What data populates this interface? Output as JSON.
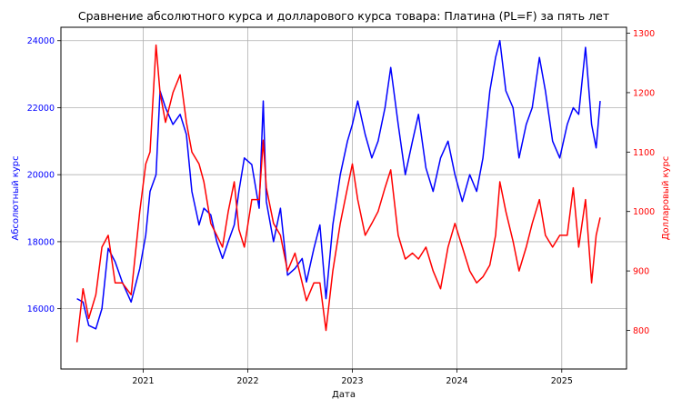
{
  "chart_data": {
    "type": "line",
    "title": "Сравнение абсолютного курса и долларового курса товара: Платина (PL=F) за пять лет",
    "xlabel": "Дата",
    "x_range": [
      "2020-03-20",
      "2025-08-15"
    ],
    "x_ticks": [
      "2021",
      "2022",
      "2023",
      "2024",
      "2025"
    ],
    "grid": true,
    "axes": {
      "left": {
        "label": "Абсолютный курс",
        "color": "#0000ff",
        "ylim": [
          14200,
          24400
        ],
        "ticks": [
          "16000",
          "18000",
          "20000",
          "22000",
          "24000"
        ]
      },
      "right": {
        "label": "Долларовый курс",
        "color": "#ff0000",
        "ylim": [
          735,
          1310
        ],
        "ticks": [
          "800",
          "900",
          "1000",
          "1100",
          "1200",
          "1300"
        ]
      }
    },
    "series": [
      {
        "axis": "left",
        "color": "#0000ff",
        "x": [
          "2020-05-15",
          "2020-06-05",
          "2020-06-25",
          "2020-07-20",
          "2020-08-10",
          "2020-09-01",
          "2020-09-25",
          "2020-10-20",
          "2020-11-20",
          "2020-12-20",
          "2021-01-10",
          "2021-01-25",
          "2021-02-15",
          "2021-03-01",
          "2021-03-20",
          "2021-04-15",
          "2021-05-10",
          "2021-06-01",
          "2021-06-20",
          "2021-07-15",
          "2021-08-01",
          "2021-08-25",
          "2021-09-15",
          "2021-10-05",
          "2021-10-25",
          "2021-11-15",
          "2021-12-01",
          "2021-12-20",
          "2022-01-15",
          "2022-02-10",
          "2022-02-24",
          "2022-03-07",
          "2022-04-01",
          "2022-04-25",
          "2022-05-20",
          "2022-06-15",
          "2022-07-10",
          "2022-07-25",
          "2022-08-20",
          "2022-09-10",
          "2022-10-01",
          "2022-10-25",
          "2022-11-20",
          "2022-12-15",
          "2023-01-01",
          "2023-01-20",
          "2023-02-15",
          "2023-03-10",
          "2023-04-01",
          "2023-04-25",
          "2023-05-15",
          "2023-06-10",
          "2023-07-05",
          "2023-07-30",
          "2023-08-20",
          "2023-09-15",
          "2023-10-10",
          "2023-11-05",
          "2023-12-01",
          "2023-12-25",
          "2024-01-20",
          "2024-02-15",
          "2024-03-10",
          "2024-04-01",
          "2024-04-25",
          "2024-05-15",
          "2024-05-30",
          "2024-06-20",
          "2024-07-15",
          "2024-08-05",
          "2024-08-30",
          "2024-09-20",
          "2024-10-15",
          "2024-11-05",
          "2024-11-30",
          "2024-12-25",
          "2025-01-20",
          "2025-02-10",
          "2025-03-01",
          "2025-03-25",
          "2025-04-15",
          "2025-05-01",
          "2025-05-15"
        ],
        "y": [
          16300,
          16200,
          15500,
          15400,
          16000,
          17800,
          17400,
          16800,
          16200,
          17200,
          18200,
          19500,
          20000,
          22500,
          22000,
          21500,
          21800,
          21200,
          19500,
          18500,
          19000,
          18800,
          18000,
          17500,
          18000,
          18500,
          19500,
          20500,
          20300,
          19000,
          22200,
          19200,
          18000,
          19000,
          17000,
          17200,
          17500,
          16800,
          17800,
          18500,
          16300,
          18500,
          20000,
          21000,
          21500,
          22200,
          21200,
          20500,
          21000,
          22000,
          23200,
          21500,
          20000,
          21000,
          21800,
          20200,
          19500,
          20500,
          21000,
          20000,
          19200,
          20000,
          19500,
          20500,
          22500,
          23500,
          24000,
          22500,
          22000,
          20500,
          21500,
          22000,
          23500,
          22500,
          21000,
          20500,
          21500,
          22000,
          21800,
          23800,
          21500,
          20800,
          22200
        ]
      },
      {
        "axis": "right",
        "color": "#ff0000",
        "x": [
          "2020-05-15",
          "2020-06-05",
          "2020-06-25",
          "2020-07-20",
          "2020-08-10",
          "2020-09-01",
          "2020-09-25",
          "2020-10-20",
          "2020-11-20",
          "2020-12-20",
          "2021-01-10",
          "2021-01-25",
          "2021-02-15",
          "2021-03-01",
          "2021-03-20",
          "2021-04-15",
          "2021-05-10",
          "2021-06-01",
          "2021-06-20",
          "2021-07-15",
          "2021-08-01",
          "2021-08-25",
          "2021-09-15",
          "2021-10-05",
          "2021-10-25",
          "2021-11-15",
          "2021-12-01",
          "2021-12-20",
          "2022-01-15",
          "2022-02-10",
          "2022-02-24",
          "2022-03-07",
          "2022-04-01",
          "2022-04-25",
          "2022-05-20",
          "2022-06-15",
          "2022-07-10",
          "2022-07-25",
          "2022-08-20",
          "2022-09-10",
          "2022-10-01",
          "2022-10-25",
          "2022-11-20",
          "2022-12-15",
          "2023-01-01",
          "2023-01-20",
          "2023-02-15",
          "2023-03-10",
          "2023-04-01",
          "2023-04-25",
          "2023-05-15",
          "2023-06-10",
          "2023-07-05",
          "2023-07-30",
          "2023-08-20",
          "2023-09-15",
          "2023-10-10",
          "2023-11-05",
          "2023-12-01",
          "2023-12-25",
          "2024-01-20",
          "2024-02-15",
          "2024-03-10",
          "2024-04-01",
          "2024-04-25",
          "2024-05-15",
          "2024-05-30",
          "2024-06-20",
          "2024-07-15",
          "2024-08-05",
          "2024-08-30",
          "2024-09-20",
          "2024-10-15",
          "2024-11-05",
          "2024-11-30",
          "2024-12-25",
          "2025-01-20",
          "2025-02-10",
          "2025-03-01",
          "2025-03-25",
          "2025-04-15",
          "2025-05-01",
          "2025-05-15"
        ],
        "y": [
          780,
          870,
          820,
          860,
          940,
          960,
          880,
          880,
          860,
          1000,
          1080,
          1100,
          1280,
          1200,
          1150,
          1200,
          1230,
          1150,
          1100,
          1080,
          1050,
          980,
          960,
          940,
          1000,
          1050,
          970,
          940,
          1020,
          1020,
          1120,
          1040,
          980,
          960,
          900,
          930,
          880,
          850,
          880,
          880,
          800,
          900,
          980,
          1040,
          1080,
          1020,
          960,
          980,
          1000,
          1040,
          1070,
          960,
          920,
          930,
          920,
          940,
          900,
          870,
          940,
          980,
          940,
          900,
          880,
          890,
          910,
          960,
          1050,
          1000,
          950,
          900,
          940,
          980,
          1020,
          960,
          940,
          960,
          960,
          1040,
          940,
          1020,
          880,
          960,
          990
        ]
      }
    ]
  }
}
